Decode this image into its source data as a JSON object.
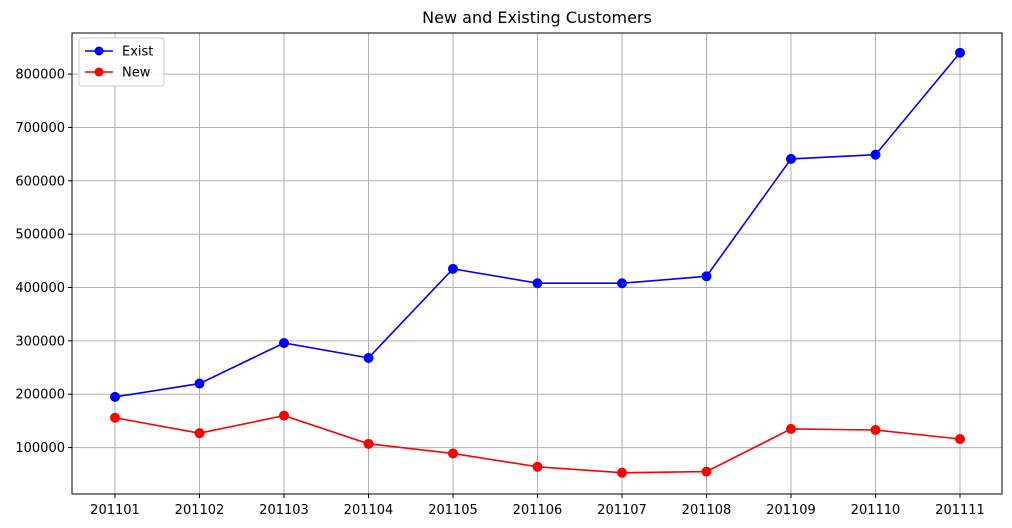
{
  "chart_data": {
    "type": "line",
    "title": "New and Existing Customers",
    "xlabel": "",
    "ylabel": "",
    "categories": [
      "201101",
      "201102",
      "201103",
      "201104",
      "201105",
      "201106",
      "201107",
      "201108",
      "201109",
      "201110",
      "201111"
    ],
    "series": [
      {
        "name": "Exist",
        "color": "#0000ff",
        "values": [
          195000,
          220000,
          296000,
          268000,
          435000,
          408000,
          408000,
          421000,
          641000,
          649000,
          840000
        ]
      },
      {
        "name": "New",
        "color": "#ff0000",
        "values": [
          156000,
          127000,
          160000,
          107000,
          89000,
          64000,
          53000,
          55000,
          135000,
          133000,
          116000
        ]
      }
    ],
    "ylim": [
      13000,
      877000
    ],
    "yticks": [
      "100000",
      "200000",
      "300000",
      "400000",
      "500000",
      "600000",
      "700000",
      "800000"
    ],
    "grid": true,
    "legend_position": "top-left"
  }
}
